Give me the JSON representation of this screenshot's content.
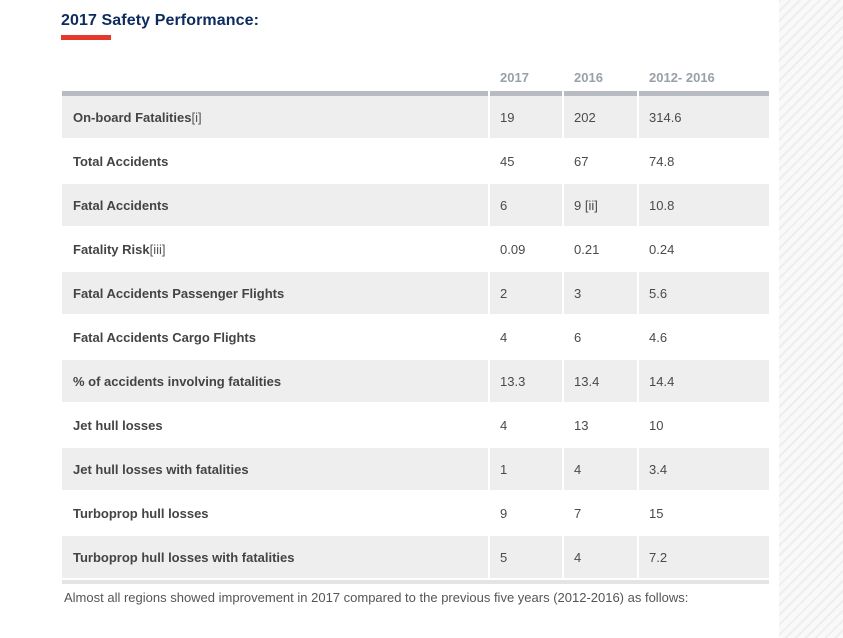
{
  "title": "2017 Safety Performance:",
  "table": {
    "headers": [
      "",
      "2017",
      "2016",
      "2012- 2016"
    ],
    "rows": [
      {
        "label": "On-board Fatalities",
        "note": "[i]",
        "v2017": "19",
        "v2016": "202",
        "vavg": "314.6"
      },
      {
        "label": "Total Accidents",
        "note": "",
        "v2017": "45",
        "v2016": "67",
        "vavg": "74.8"
      },
      {
        "label": "Fatal Accidents",
        "note": "",
        "v2017": "6",
        "v2016": "9 [ii]",
        "vavg": "10.8"
      },
      {
        "label": "Fatality Risk",
        "note": "[iii]",
        "v2017": "0.09",
        "v2016": "0.21",
        "vavg": "0.24"
      },
      {
        "label": "Fatal Accidents Passenger Flights",
        "note": "",
        "v2017": "2",
        "v2016": "3",
        "vavg": "5.6"
      },
      {
        "label": "Fatal Accidents Cargo Flights",
        "note": "",
        "v2017": "4",
        "v2016": "6",
        "vavg": "4.6"
      },
      {
        "label": "% of accidents involving fatalities",
        "note": "",
        "v2017": "13.3",
        "v2016": "13.4",
        "vavg": "14.4"
      },
      {
        "label": "Jet hull losses",
        "note": "",
        "v2017": "4",
        "v2016": "13",
        "vavg": "10"
      },
      {
        "label": "Jet hull losses with fatalities",
        "note": "",
        "v2017": "1",
        "v2016": "4",
        "vavg": "3.4"
      },
      {
        "label": "Turboprop hull losses",
        "note": "",
        "v2017": "9",
        "v2016": "7",
        "vavg": "15"
      },
      {
        "label": "Turboprop hull losses with fatalities",
        "note": "",
        "v2017": "5",
        "v2016": "4",
        "vavg": "7.2"
      }
    ]
  },
  "footer": "Almost all regions showed improvement in 2017 compared to the previous five years (2012-2016) as follows:",
  "colors": {
    "title": "#0d2b5e",
    "accent": "#e5372a",
    "row_shade": "#eeeeee",
    "header_text": "#9aa0a8"
  }
}
